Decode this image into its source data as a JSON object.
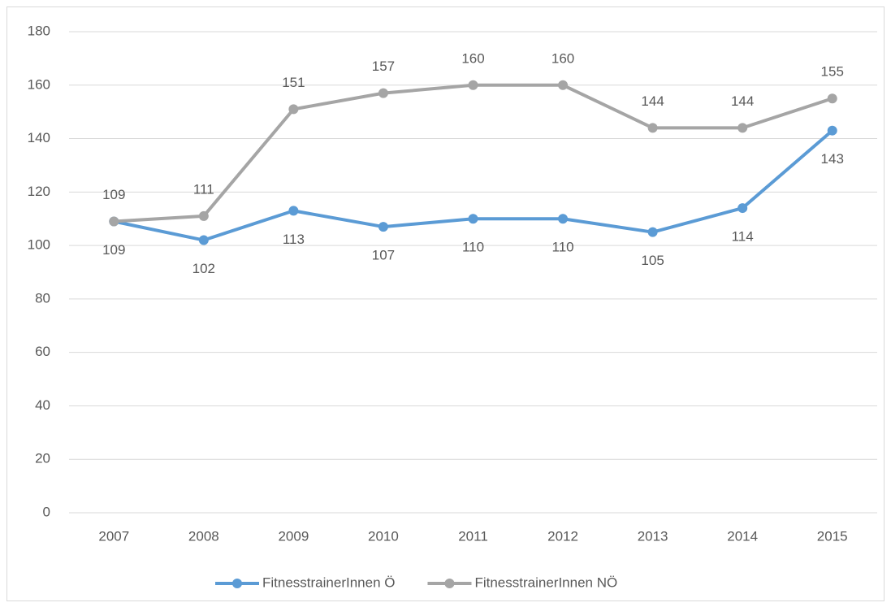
{
  "chart_data": {
    "type": "line",
    "categories": [
      "2007",
      "2008",
      "2009",
      "2010",
      "2011",
      "2012",
      "2013",
      "2014",
      "2015"
    ],
    "series": [
      {
        "name": "FitnesstrainerInnen Ö",
        "color": "#5b9bd5",
        "values": [
          109,
          102,
          113,
          107,
          110,
          110,
          105,
          114,
          143
        ]
      },
      {
        "name": "FitnesstrainerInnen NÖ",
        "color": "#a5a5a5",
        "values": [
          109,
          111,
          151,
          157,
          160,
          160,
          144,
          144,
          155
        ]
      }
    ],
    "ylim": [
      0,
      180
    ],
    "yticks": [
      0,
      20,
      40,
      60,
      80,
      100,
      120,
      140,
      160,
      180
    ],
    "grid": true,
    "legend": "bottom"
  }
}
